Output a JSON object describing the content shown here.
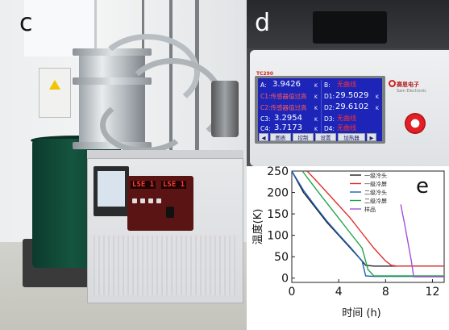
{
  "panels": {
    "c": {
      "letter": "c"
    },
    "d": {
      "letter": "d"
    },
    "e": {
      "letter": "e"
    }
  },
  "controller_c": {
    "display_1": "LSE 1",
    "display_2": "LSE 1"
  },
  "display_d": {
    "model": "TC290",
    "brand": "赛恩电子",
    "brand_sub": "Sain Electronic",
    "rows": [
      {
        "label_left": "A:",
        "value_left": "3.9426",
        "unit_left": "K",
        "label_right": "B:",
        "value_right": "无曲线",
        "unit_right": ""
      },
      {
        "label_left": "C1:传感器值过高",
        "value_left": "",
        "unit_left": "K",
        "label_right": "D1:",
        "value_right": "29.5029",
        "unit_right": "K"
      },
      {
        "label_left": "C2:传感器值过高",
        "value_left": "",
        "unit_left": "K",
        "label_right": "D2:",
        "value_right": "29.6102",
        "unit_right": "K"
      },
      {
        "label_left": "C3:",
        "value_left": "3.2954",
        "unit_left": "K",
        "label_right": "D3:",
        "value_right": "无曲线",
        "unit_right": ""
      },
      {
        "label_left": "C4:",
        "value_left": "3.7173",
        "unit_left": "K",
        "label_right": "D4:",
        "value_right": "无曲线",
        "unit_right": ""
      }
    ],
    "softkeys": [
      "◀",
      "图表",
      "控制",
      "设置",
      "加热器",
      "▶"
    ]
  },
  "chart_data": {
    "type": "line",
    "title": "",
    "xlabel": "时间 (h)",
    "ylabel": "温度(K)",
    "xlim": [
      0,
      13
    ],
    "ylim": [
      -10,
      250
    ],
    "xticks": [
      0,
      4,
      8,
      12
    ],
    "yticks": [
      0,
      50,
      100,
      150,
      200,
      250
    ],
    "legend_position": "top-right",
    "series": [
      {
        "name": "一级冷头",
        "color": "#222222",
        "x": [
          0,
          1,
          2,
          3,
          4,
          5,
          6,
          6.3,
          7,
          9,
          10,
          13
        ],
        "y": [
          250,
          200,
          165,
          130,
          100,
          70,
          40,
          30,
          28,
          28,
          28,
          28
        ]
      },
      {
        "name": "一级冷屏",
        "color": "#e0312c",
        "x": [
          1.3,
          2,
          3,
          4,
          5,
          6,
          7,
          8,
          8.5,
          9,
          13
        ],
        "y": [
          250,
          230,
          200,
          170,
          140,
          105,
          70,
          40,
          30,
          28,
          28
        ]
      },
      {
        "name": "二级冷头",
        "color": "#1d5fb8",
        "x": [
          0,
          1,
          2,
          3,
          4,
          5,
          6,
          6.3,
          7,
          10,
          13
        ],
        "y": [
          250,
          205,
          168,
          133,
          102,
          72,
          40,
          5,
          4,
          4,
          4
        ]
      },
      {
        "name": "二级冷屏",
        "color": "#23a54a",
        "x": [
          0.9,
          2,
          3,
          4,
          5,
          6,
          6.5,
          7,
          10,
          13
        ],
        "y": [
          250,
          210,
          175,
          140,
          105,
          70,
          20,
          5,
          5,
          5
        ]
      },
      {
        "name": "样品",
        "color": "#a450d8",
        "x": [
          9.3,
          9.45,
          9.6,
          9.8,
          10,
          10.2,
          10.4,
          13
        ],
        "y": [
          172,
          150,
          130,
          100,
          70,
          40,
          3,
          3
        ]
      }
    ]
  }
}
